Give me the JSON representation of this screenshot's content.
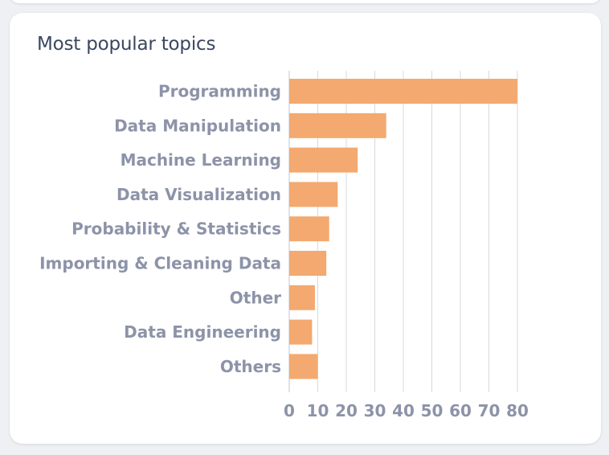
{
  "card": {
    "title": "Most popular topics"
  },
  "colors": {
    "bar": "#f3a96f",
    "grid": "#d7d9de",
    "text": "#8d93a8",
    "title": "#3b4660"
  },
  "chart_data": {
    "type": "bar",
    "orientation": "horizontal",
    "title": "Most popular topics",
    "categories": [
      "Programming",
      "Data Manipulation",
      "Machine Learning",
      "Data Visualization",
      "Probability & Statistics",
      "Importing & Cleaning Data",
      "Other",
      "Data Engineering",
      "Others"
    ],
    "values": [
      80,
      34,
      24,
      17,
      14,
      13,
      9,
      8,
      10
    ],
    "xlim": [
      0,
      80
    ],
    "xticks": [
      0,
      10,
      20,
      30,
      40,
      50,
      60,
      70,
      80
    ],
    "xlabel": "",
    "ylabel": "",
    "grid": "vertical",
    "legend": "none"
  }
}
